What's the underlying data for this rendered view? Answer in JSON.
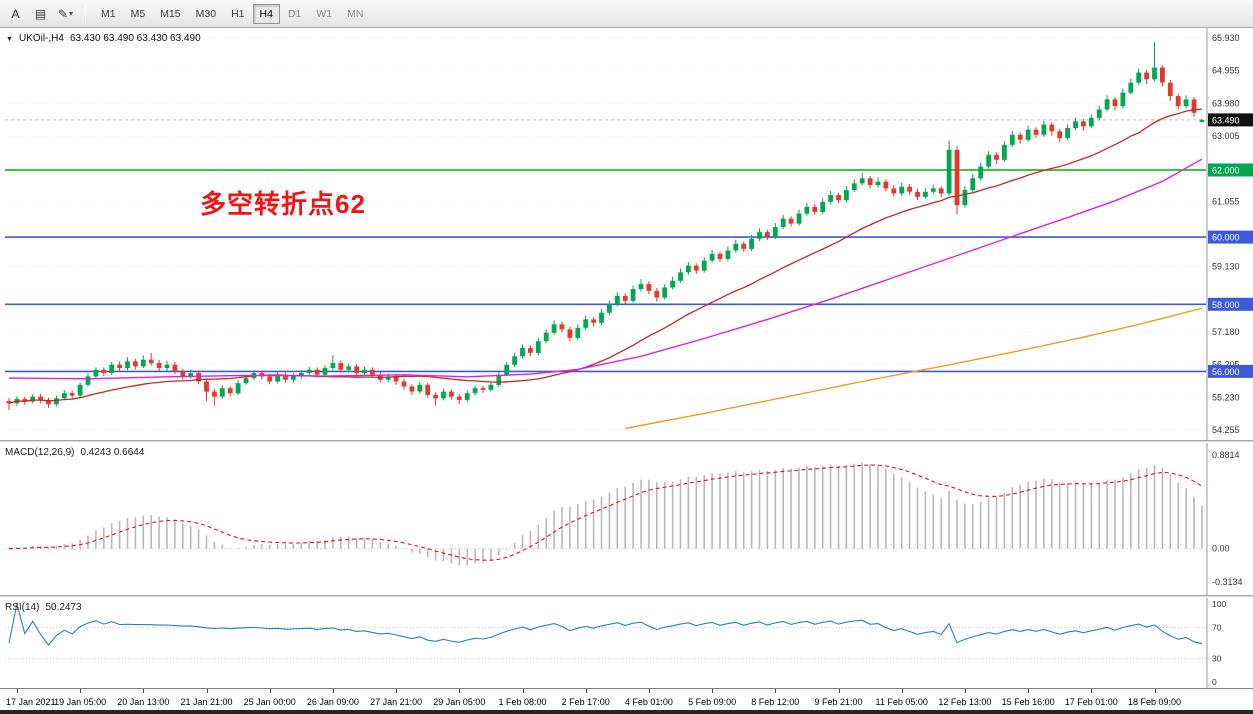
{
  "toolbar": {
    "tools": [
      {
        "label": "A"
      },
      {
        "label": "▤"
      },
      {
        "label": "✎"
      }
    ],
    "dropdown_caret": "▾",
    "timeframes": [
      {
        "label": "M1"
      },
      {
        "label": "M5"
      },
      {
        "label": "M15"
      },
      {
        "label": "M30"
      },
      {
        "label": "H1"
      },
      {
        "label": "H4",
        "active": true
      },
      {
        "label": "D1",
        "dim": true
      },
      {
        "label": "W1",
        "dim": true
      },
      {
        "label": "MN",
        "dim": true
      }
    ],
    "active_timeframe": "H4"
  },
  "chart": {
    "collapse_arrow": "▼",
    "symbol": "UKOil-,H4",
    "ohlc": "63.430 63.490 63.430 63.490"
  },
  "annotation": {
    "text": "多空转折点62",
    "color": "#f21414"
  },
  "price_axis": {
    "ticks": [
      {
        "label": "65.930",
        "value": 65.93
      },
      {
        "label": "64.955",
        "value": 64.955
      },
      {
        "label": "63.980",
        "value": 63.98
      },
      {
        "label": "63.005",
        "value": 63.005
      },
      {
        "label": "61.055",
        "value": 61.055
      },
      {
        "label": "59.130",
        "value": 59.13
      },
      {
        "label": "57.180",
        "value": 57.18
      },
      {
        "label": "56.205",
        "value": 56.205
      },
      {
        "label": "55.230",
        "value": 55.23
      },
      {
        "label": "54.255",
        "value": 54.255
      }
    ],
    "badges": [
      {
        "label": "63.490",
        "value": 63.49,
        "bg": "#101010"
      },
      {
        "label": "62.000",
        "value": 62.0,
        "bg": "#00a651"
      },
      {
        "label": "60.000",
        "value": 60.0,
        "bg": "#3b5bdb"
      },
      {
        "label": "58.000",
        "value": 58.0,
        "bg": "#3b5bdb"
      },
      {
        "label": "56.000",
        "value": 56.0,
        "bg": "#3b5bdb"
      }
    ]
  },
  "macd": {
    "label": "MACD(12,26,9)",
    "values": "0.4243 0.6644",
    "ticks": [
      {
        "label": "0.8814",
        "value": 0.8814
      },
      {
        "label": "0.00",
        "value": 0
      },
      {
        "label": "-0.3134",
        "value": -0.3134
      }
    ]
  },
  "rsi": {
    "label": "RSI(14)",
    "value": "50.2473",
    "ticks": [
      {
        "label": "100",
        "value": 100
      },
      {
        "label": "70",
        "value": 70
      },
      {
        "label": "30",
        "value": 30
      },
      {
        "label": "0",
        "value": 0
      }
    ],
    "levels": [
      70,
      30
    ]
  },
  "chart_data": {
    "type": "candlestick",
    "symbol": "UKOil-",
    "timeframe": "H4",
    "y_range": [
      54.255,
      65.93
    ],
    "bid_price": 63.49,
    "up_color": "#00a94f",
    "down_color": "#e23a2e",
    "hlines": [
      {
        "value": 62.0,
        "color": "#00b400"
      },
      {
        "value": 60.0,
        "color": "#3b5bdb"
      },
      {
        "value": 58.0,
        "color": "#3b5bdb"
      },
      {
        "value": 56.0,
        "color": "#3b5bdb"
      }
    ],
    "x_labels": [
      "17 Jan 2021",
      "19 Jan 05:00",
      "20 Jan 13:00",
      "21 Jan 21:00",
      "25 Jan 00:00",
      "26 Jan 09:00",
      "27 Jan 21:00",
      "29 Jan 05:00",
      "1 Feb 08:00",
      "2 Feb 17:00",
      "4 Feb 01:00",
      "5 Feb 09:00",
      "8 Feb 12:00",
      "9 Feb 21:00",
      "11 Feb 05:00",
      "12 Feb 13:00",
      "15 Feb 16:00",
      "17 Feb 01:00",
      "18 Feb 09:00"
    ],
    "x_label_bar_indices": [
      1,
      9,
      17,
      25,
      33,
      41,
      49,
      57,
      65,
      73,
      81,
      89,
      97,
      105,
      113,
      121,
      129,
      137,
      145
    ],
    "candles": [
      [
        55.12,
        55.2,
        54.85,
        55.05
      ],
      [
        55.05,
        55.26,
        54.98,
        55.18
      ],
      [
        55.18,
        55.24,
        55.0,
        55.1
      ],
      [
        55.1,
        55.32,
        55.04,
        55.25
      ],
      [
        55.25,
        55.33,
        55.05,
        55.15
      ],
      [
        55.15,
        55.22,
        54.92,
        55.02
      ],
      [
        55.02,
        55.28,
        54.96,
        55.2
      ],
      [
        55.2,
        55.44,
        55.14,
        55.35
      ],
      [
        55.35,
        55.42,
        55.18,
        55.28
      ],
      [
        55.28,
        55.68,
        55.22,
        55.6
      ],
      [
        55.6,
        55.95,
        55.55,
        55.85
      ],
      [
        55.85,
        56.12,
        55.78,
        56.05
      ],
      [
        56.05,
        56.12,
        55.86,
        55.95
      ],
      [
        55.95,
        56.28,
        55.9,
        56.2
      ],
      [
        56.2,
        56.3,
        56.0,
        56.1
      ],
      [
        56.1,
        56.42,
        56.04,
        56.3
      ],
      [
        56.3,
        56.38,
        56.06,
        56.15
      ],
      [
        56.15,
        56.48,
        56.1,
        56.35
      ],
      [
        56.35,
        56.55,
        56.18,
        56.25
      ],
      [
        56.25,
        56.34,
        56.0,
        56.1
      ],
      [
        56.1,
        56.32,
        56.02,
        56.2
      ],
      [
        56.2,
        56.28,
        55.92,
        56.0
      ],
      [
        56.0,
        56.08,
        55.76,
        55.85
      ],
      [
        55.85,
        56.06,
        55.78,
        55.95
      ],
      [
        55.95,
        56.0,
        55.62,
        55.7
      ],
      [
        55.7,
        55.78,
        55.12,
        55.4
      ],
      [
        55.4,
        55.48,
        54.98,
        55.25
      ],
      [
        55.25,
        55.58,
        55.18,
        55.5
      ],
      [
        55.5,
        55.56,
        55.26,
        55.35
      ],
      [
        55.35,
        55.74,
        55.3,
        55.65
      ],
      [
        55.65,
        55.9,
        55.6,
        55.8
      ],
      [
        55.8,
        56.04,
        55.74,
        55.95
      ],
      [
        55.95,
        56.02,
        55.76,
        55.85
      ],
      [
        55.85,
        55.92,
        55.62,
        55.7
      ],
      [
        55.7,
        55.98,
        55.64,
        55.9
      ],
      [
        55.9,
        55.97,
        55.66,
        55.75
      ],
      [
        55.75,
        55.94,
        55.68,
        55.85
      ],
      [
        55.85,
        56.04,
        55.78,
        55.95
      ],
      [
        55.95,
        56.14,
        55.88,
        56.05
      ],
      [
        56.05,
        56.12,
        55.82,
        55.9
      ],
      [
        55.9,
        56.18,
        55.84,
        56.1
      ],
      [
        56.1,
        56.48,
        56.04,
        56.25
      ],
      [
        56.25,
        56.32,
        55.96,
        56.05
      ],
      [
        56.05,
        56.24,
        55.98,
        56.15
      ],
      [
        56.15,
        56.22,
        55.86,
        55.95
      ],
      [
        55.95,
        56.14,
        55.88,
        56.05
      ],
      [
        56.05,
        56.12,
        55.82,
        55.9
      ],
      [
        55.9,
        55.98,
        55.66,
        55.75
      ],
      [
        55.75,
        55.94,
        55.68,
        55.85
      ],
      [
        55.85,
        55.92,
        55.6,
        55.7
      ],
      [
        55.7,
        55.78,
        55.46,
        55.55
      ],
      [
        55.55,
        55.62,
        55.3,
        55.4
      ],
      [
        55.4,
        55.68,
        55.34,
        55.6
      ],
      [
        55.6,
        55.66,
        55.22,
        55.3
      ],
      [
        55.3,
        55.38,
        54.98,
        55.2
      ],
      [
        55.2,
        55.48,
        55.14,
        55.4
      ],
      [
        55.4,
        55.46,
        55.16,
        55.25
      ],
      [
        55.25,
        55.32,
        55.02,
        55.15
      ],
      [
        55.15,
        55.44,
        55.08,
        55.35
      ],
      [
        55.35,
        55.58,
        55.28,
        55.5
      ],
      [
        55.5,
        55.57,
        55.36,
        55.45
      ],
      [
        55.45,
        55.7,
        55.4,
        55.6
      ],
      [
        55.6,
        55.98,
        55.54,
        55.9
      ],
      [
        55.9,
        56.28,
        55.85,
        56.2
      ],
      [
        56.2,
        56.55,
        56.12,
        56.45
      ],
      [
        56.45,
        56.8,
        56.38,
        56.7
      ],
      [
        56.7,
        56.78,
        56.46,
        56.55
      ],
      [
        56.55,
        57.0,
        56.48,
        56.9
      ],
      [
        56.9,
        57.25,
        56.84,
        57.15
      ],
      [
        57.15,
        57.52,
        57.08,
        57.4
      ],
      [
        57.4,
        57.48,
        57.16,
        57.25
      ],
      [
        57.25,
        57.33,
        56.9,
        57.0
      ],
      [
        57.0,
        57.4,
        56.94,
        57.3
      ],
      [
        57.3,
        57.66,
        57.22,
        57.55
      ],
      [
        57.55,
        57.62,
        57.34,
        57.45
      ],
      [
        57.45,
        57.86,
        57.38,
        57.75
      ],
      [
        57.75,
        58.1,
        57.68,
        58.0
      ],
      [
        58.0,
        58.36,
        57.94,
        58.25
      ],
      [
        58.25,
        58.32,
        57.98,
        58.1
      ],
      [
        58.1,
        58.56,
        58.04,
        58.45
      ],
      [
        58.45,
        58.75,
        58.38,
        58.6
      ],
      [
        58.6,
        58.68,
        58.3,
        58.4
      ],
      [
        58.4,
        58.48,
        58.08,
        58.2
      ],
      [
        58.2,
        58.6,
        58.14,
        58.5
      ],
      [
        58.5,
        58.82,
        58.44,
        58.7
      ],
      [
        58.7,
        59.06,
        58.64,
        58.95
      ],
      [
        58.95,
        59.26,
        58.88,
        59.15
      ],
      [
        59.15,
        59.22,
        58.9,
        59.0
      ],
      [
        59.0,
        59.4,
        58.94,
        59.3
      ],
      [
        59.3,
        59.62,
        59.24,
        59.5
      ],
      [
        59.5,
        59.57,
        59.26,
        59.35
      ],
      [
        59.35,
        59.72,
        59.28,
        59.6
      ],
      [
        59.6,
        59.92,
        59.54,
        59.8
      ],
      [
        59.8,
        59.87,
        59.56,
        59.65
      ],
      [
        59.65,
        60.06,
        59.58,
        59.95
      ],
      [
        59.95,
        60.26,
        59.88,
        60.15
      ],
      [
        60.15,
        60.22,
        59.92,
        60.0
      ],
      [
        60.0,
        60.42,
        59.94,
        60.3
      ],
      [
        60.3,
        60.66,
        60.24,
        60.55
      ],
      [
        60.55,
        60.62,
        60.32,
        60.4
      ],
      [
        60.4,
        60.82,
        60.34,
        60.7
      ],
      [
        60.7,
        61.02,
        60.64,
        60.9
      ],
      [
        60.9,
        60.98,
        60.66,
        60.75
      ],
      [
        60.75,
        61.16,
        60.68,
        61.05
      ],
      [
        61.05,
        61.37,
        60.98,
        61.25
      ],
      [
        61.25,
        61.32,
        61.0,
        61.1
      ],
      [
        61.1,
        61.52,
        61.04,
        61.4
      ],
      [
        61.4,
        61.72,
        61.34,
        61.6
      ],
      [
        61.6,
        61.92,
        61.54,
        61.75
      ],
      [
        61.75,
        61.82,
        61.46,
        61.55
      ],
      [
        61.55,
        61.78,
        61.48,
        61.65
      ],
      [
        61.65,
        61.72,
        61.36,
        61.45
      ],
      [
        61.45,
        61.56,
        61.22,
        61.3
      ],
      [
        61.3,
        61.62,
        61.24,
        61.5
      ],
      [
        61.5,
        61.58,
        61.26,
        61.35
      ],
      [
        61.35,
        61.44,
        61.1,
        61.2
      ],
      [
        61.2,
        61.46,
        61.14,
        61.35
      ],
      [
        61.35,
        61.56,
        61.28,
        61.45
      ],
      [
        61.45,
        61.52,
        61.2,
        61.3
      ],
      [
        61.3,
        62.88,
        61.24,
        62.6
      ],
      [
        62.6,
        62.72,
        60.68,
        60.95
      ],
      [
        60.95,
        61.52,
        60.88,
        61.4
      ],
      [
        61.4,
        61.88,
        61.34,
        61.75
      ],
      [
        61.75,
        62.22,
        61.68,
        62.1
      ],
      [
        62.1,
        62.56,
        62.04,
        62.45
      ],
      [
        62.45,
        62.52,
        62.18,
        62.3
      ],
      [
        62.3,
        62.86,
        62.24,
        62.75
      ],
      [
        62.75,
        63.16,
        62.68,
        63.05
      ],
      [
        63.05,
        63.12,
        62.78,
        62.9
      ],
      [
        62.9,
        63.32,
        62.84,
        63.2
      ],
      [
        63.2,
        63.27,
        62.94,
        63.05
      ],
      [
        63.05,
        63.46,
        62.98,
        63.35
      ],
      [
        63.35,
        63.42,
        63.02,
        63.15
      ],
      [
        63.15,
        63.22,
        62.82,
        62.95
      ],
      [
        62.95,
        63.36,
        62.88,
        63.25
      ],
      [
        63.25,
        63.56,
        63.18,
        63.45
      ],
      [
        63.45,
        63.52,
        63.16,
        63.3
      ],
      [
        63.3,
        63.66,
        63.24,
        63.55
      ],
      [
        63.55,
        63.92,
        63.48,
        63.8
      ],
      [
        63.8,
        64.22,
        63.74,
        64.1
      ],
      [
        64.1,
        64.17,
        63.78,
        63.9
      ],
      [
        63.9,
        64.42,
        63.84,
        64.3
      ],
      [
        64.3,
        64.72,
        64.24,
        64.6
      ],
      [
        64.6,
        65.02,
        64.54,
        64.9
      ],
      [
        64.9,
        64.98,
        64.56,
        64.7
      ],
      [
        64.7,
        65.8,
        64.64,
        65.05
      ],
      [
        65.05,
        65.12,
        64.48,
        64.6
      ],
      [
        64.6,
        64.68,
        64.06,
        64.2
      ],
      [
        64.2,
        64.28,
        63.8,
        63.9
      ],
      [
        63.9,
        64.22,
        63.82,
        64.1
      ],
      [
        64.1,
        64.17,
        63.58,
        63.7
      ],
      [
        63.43,
        63.52,
        63.4,
        63.49
      ]
    ],
    "moving_averages": [
      {
        "name": "ma-fast",
        "type": "sma",
        "period": 24,
        "color": "#c62828"
      },
      {
        "name": "ma-medium",
        "color": "#dd22dd",
        "points": [
          [
            0,
            55.8
          ],
          [
            10,
            55.78
          ],
          [
            20,
            55.84
          ],
          [
            30,
            55.88
          ],
          [
            40,
            55.86
          ],
          [
            50,
            55.9
          ],
          [
            58,
            55.84
          ],
          [
            66,
            55.92
          ],
          [
            72,
            56.06
          ],
          [
            80,
            56.45
          ],
          [
            88,
            56.98
          ],
          [
            96,
            57.55
          ],
          [
            104,
            58.15
          ],
          [
            112,
            58.8
          ],
          [
            120,
            59.45
          ],
          [
            128,
            60.1
          ],
          [
            134,
            60.58
          ],
          [
            140,
            61.08
          ],
          [
            146,
            61.66
          ],
          [
            151,
            62.32
          ]
        ]
      },
      {
        "name": "ma-slow",
        "color": "#e8a225",
        "points": [
          [
            78,
            54.3
          ],
          [
            88,
            54.75
          ],
          [
            98,
            55.22
          ],
          [
            108,
            55.7
          ],
          [
            118,
            56.15
          ],
          [
            128,
            56.62
          ],
          [
            136,
            57.02
          ],
          [
            143,
            57.4
          ],
          [
            151,
            57.88
          ]
        ]
      }
    ],
    "indicators": {
      "macd": {
        "fast": 12,
        "slow": 26,
        "signal": 9,
        "current_macd": 0.4243,
        "current_signal": 0.6644,
        "histogram_color": "#b9b9b9",
        "signal_color": "#cc2020",
        "range": [
          -0.38,
          0.92
        ]
      },
      "rsi": {
        "period": 14,
        "current": 50.2473,
        "color": "#2d7fc1",
        "range": [
          0,
          100
        ]
      }
    }
  }
}
